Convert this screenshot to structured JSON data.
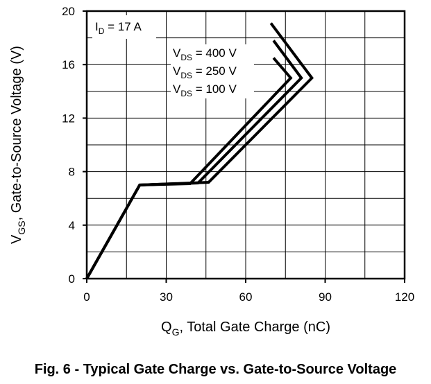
{
  "caption": "Fig. 6 - Typical Gate Charge vs. Gate-to-Source Voltage",
  "chart_data": {
    "type": "line",
    "title": "",
    "xlabel": {
      "main": "Q",
      "sub": "G",
      "rest": ", Total Gate Charge (nC)"
    },
    "ylabel": {
      "main": "V",
      "sub": "GS",
      "rest": ", Gate-to-Source Voltage (V)"
    },
    "xlim": [
      0,
      120
    ],
    "ylim": [
      0,
      20
    ],
    "xticks": [
      0,
      30,
      60,
      90,
      120
    ],
    "yticks": [
      0,
      4,
      8,
      12,
      16,
      20
    ],
    "grid": true,
    "annotation": {
      "main": "I",
      "sub": "D",
      "rest": " = 17 A"
    },
    "series": [
      {
        "name": "V_DS = 400 V",
        "label": {
          "main": "V",
          "sub": "DS",
          "rest": " = 400 V"
        },
        "x": [
          0,
          20,
          46,
          85,
          69.5
        ],
        "y": [
          0,
          7,
          7.2,
          15,
          19.1
        ]
      },
      {
        "name": "V_DS = 250 V",
        "label": {
          "main": "V",
          "sub": "DS",
          "rest": " = 250 V"
        },
        "x": [
          0,
          20,
          42,
          81,
          70.5
        ],
        "y": [
          0,
          7,
          7.15,
          15,
          17.8
        ]
      },
      {
        "name": "V_DS = 100 V",
        "label": {
          "main": "V",
          "sub": "DS",
          "rest": " = 100 V"
        },
        "x": [
          0,
          20,
          39,
          77,
          70.5
        ],
        "y": [
          0,
          7,
          7.1,
          15,
          16.5
        ]
      }
    ],
    "colors": {
      "line": "#000000",
      "grid": "#000000",
      "background": "#ffffff"
    }
  }
}
